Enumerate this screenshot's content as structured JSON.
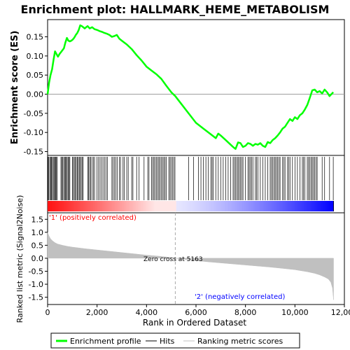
{
  "chart_data": [
    {
      "type": "line",
      "title": "Enrichment plot: HALLMARK_HEME_METABOLISM",
      "ylabel": "Enrichment score (ES)",
      "ylim": [
        -0.16,
        0.195
      ],
      "yticks": [
        -0.15,
        -0.1,
        -0.05,
        0.0,
        0.05,
        0.1,
        0.15
      ],
      "ytick_labels": [
        "-0.15",
        "-0.10",
        "-0.05",
        "0.00",
        "0.05",
        "0.10",
        "0.15"
      ],
      "xlim": [
        0,
        12000
      ],
      "series": [
        {
          "name": "Enrichment profile",
          "color": "#00ff00",
          "x": [
            0,
            60,
            120,
            180,
            240,
            300,
            360,
            420,
            480,
            540,
            600,
            660,
            720,
            780,
            840,
            900,
            960,
            1020,
            1080,
            1140,
            1200,
            1260,
            1320,
            1380,
            1440,
            1500,
            1560,
            1620,
            1700,
            1800,
            1900,
            2000,
            2100,
            2200,
            2300,
            2400,
            2500,
            2600,
            2700,
            2800,
            2900,
            3000,
            3200,
            3400,
            3600,
            3800,
            4000,
            4200,
            4400,
            4600,
            4800,
            5000,
            5163,
            5400,
            5700,
            6000,
            6300,
            6600,
            6800,
            6900,
            7000,
            7200,
            7400,
            7500,
            7600,
            7700,
            7800,
            7900,
            8000,
            8100,
            8200,
            8300,
            8400,
            8500,
            8600,
            8700,
            8800,
            8900,
            9000,
            9100,
            9200,
            9300,
            9400,
            9500,
            9600,
            9700,
            9800,
            9900,
            10000,
            10100,
            10200,
            10300,
            10400,
            10500,
            10600,
            10700,
            10800,
            10900,
            11000,
            11100,
            11200,
            11300,
            11400,
            11550
          ],
          "y": [
            0.0,
            0.03,
            0.05,
            0.065,
            0.09,
            0.112,
            0.105,
            0.098,
            0.105,
            0.11,
            0.115,
            0.12,
            0.135,
            0.147,
            0.14,
            0.138,
            0.14,
            0.143,
            0.148,
            0.155,
            0.16,
            0.168,
            0.18,
            0.178,
            0.175,
            0.172,
            0.175,
            0.178,
            0.172,
            0.175,
            0.17,
            0.168,
            0.165,
            0.163,
            0.16,
            0.158,
            0.155,
            0.15,
            0.152,
            0.155,
            0.145,
            0.14,
            0.13,
            0.118,
            0.102,
            0.088,
            0.072,
            0.062,
            0.052,
            0.04,
            0.022,
            0.005,
            -0.005,
            -0.025,
            -0.05,
            -0.075,
            -0.09,
            -0.105,
            -0.115,
            -0.103,
            -0.108,
            -0.12,
            -0.132,
            -0.138,
            -0.143,
            -0.126,
            -0.128,
            -0.138,
            -0.135,
            -0.128,
            -0.13,
            -0.135,
            -0.13,
            -0.132,
            -0.128,
            -0.135,
            -0.138,
            -0.125,
            -0.128,
            -0.12,
            -0.115,
            -0.108,
            -0.1,
            -0.09,
            -0.085,
            -0.075,
            -0.065,
            -0.07,
            -0.06,
            -0.065,
            -0.055,
            -0.05,
            -0.04,
            -0.028,
            -0.01,
            0.01,
            0.012,
            0.005,
            0.008,
            0.002,
            0.012,
            0.005,
            -0.005,
            0.005
          ]
        }
      ]
    },
    {
      "type": "heatmap",
      "name": "Hits",
      "hit_positions": [
        20,
        50,
        90,
        130,
        160,
        190,
        230,
        260,
        300,
        330,
        360,
        390,
        540,
        570,
        610,
        650,
        690,
        720,
        760,
        790,
        830,
        870,
        900,
        1000,
        1040,
        1080,
        1120,
        1160,
        1200,
        1240,
        1280,
        1320,
        1360,
        1400,
        1440,
        1620,
        1660,
        1700,
        1740,
        1800,
        1850,
        1900,
        2000,
        2060,
        2120,
        2180,
        2240,
        2300,
        2360,
        2420,
        2600,
        2650,
        2700,
        2760,
        2820,
        2900,
        2950,
        3050,
        3100,
        3200,
        3260,
        3400,
        3450,
        3600,
        3700,
        3900,
        4050,
        4100,
        4200,
        4250,
        4300,
        4350,
        4400,
        4450,
        4500,
        4550,
        4600,
        4650,
        4700,
        4750,
        4800,
        4900,
        4950,
        5000,
        5050,
        5100,
        5150,
        5700,
        5900,
        6100,
        6200,
        6300,
        6400,
        6500,
        6600,
        6650,
        6700,
        6800,
        6900,
        7000,
        7100,
        7200,
        7300,
        7400,
        7500,
        7550,
        7600,
        7650,
        7700,
        7750,
        7800,
        7850,
        7900,
        8000,
        8100,
        8150,
        8200,
        8250,
        8300,
        8400,
        8450,
        8500,
        8600,
        8700,
        8800,
        8900,
        9000,
        9050,
        9100,
        9150,
        9200,
        9250,
        9300,
        9350,
        9400,
        9500,
        9550,
        9600,
        9700,
        9750,
        9800,
        9900,
        10000,
        10100,
        10200,
        10300,
        10350,
        10400,
        10500,
        10550,
        10600,
        10650,
        10700,
        10750,
        10800,
        10850,
        10900,
        11100,
        11200,
        11400,
        11550
      ],
      "color_scale": [
        "#ff0000",
        "#ffffff",
        "#0000ff"
      ]
    },
    {
      "type": "area",
      "name": "Ranking metric scores",
      "ylabel": "Ranked list metric (Signal2Noise)",
      "xlabel": "Rank in Ordered Dataset",
      "ylim": [
        -1.78,
        1.75
      ],
      "yticks": [
        -1.5,
        -1.0,
        -0.5,
        0.0,
        0.5,
        1.0,
        1.5
      ],
      "ytick_labels": [
        "-1.5",
        "-1.0",
        "-0.5",
        "0.0",
        "0.5",
        "1.0",
        "1.5"
      ],
      "xlim": [
        0,
        12000
      ],
      "xticks": [
        0,
        2000,
        4000,
        6000,
        8000,
        10000,
        12000
      ],
      "xtick_labels": [
        "0",
        "2,000",
        "4,000",
        "6,000",
        "8,000",
        "10,000",
        "12,000"
      ],
      "x": [
        0,
        20,
        60,
        120,
        200,
        300,
        400,
        600,
        800,
        1000,
        1500,
        2000,
        2500,
        3000,
        3500,
        4000,
        4500,
        5000,
        5163,
        5500,
        6000,
        6500,
        7000,
        7500,
        8000,
        8500,
        9000,
        9500,
        10000,
        10500,
        10800,
        11000,
        11200,
        11350,
        11450,
        11520,
        11560
      ],
      "values": [
        1.0,
        0.95,
        0.85,
        0.75,
        0.67,
        0.6,
        0.55,
        0.5,
        0.46,
        0.43,
        0.37,
        0.32,
        0.27,
        0.22,
        0.17,
        0.12,
        0.08,
        0.03,
        0.0,
        -0.04,
        -0.09,
        -0.14,
        -0.18,
        -0.22,
        -0.26,
        -0.3,
        -0.34,
        -0.39,
        -0.44,
        -0.52,
        -0.58,
        -0.64,
        -0.72,
        -0.8,
        -0.92,
        -1.15,
        -1.6
      ],
      "color": "#c0c0c0"
    }
  ],
  "annotations": {
    "positive": "'1' (positively correlated)",
    "zero_cross": "Zero cross at 5163",
    "negative": "'2' (negatively correlated)",
    "zero_cross_rank": 5163
  },
  "legend": {
    "placement": "bottom",
    "items": [
      {
        "label": "Enrichment profile",
        "color": "#00ff00"
      },
      {
        "label": "Hits",
        "color": "#000000"
      },
      {
        "label": "Ranking metric scores",
        "color": "#c0c0c0"
      }
    ]
  }
}
